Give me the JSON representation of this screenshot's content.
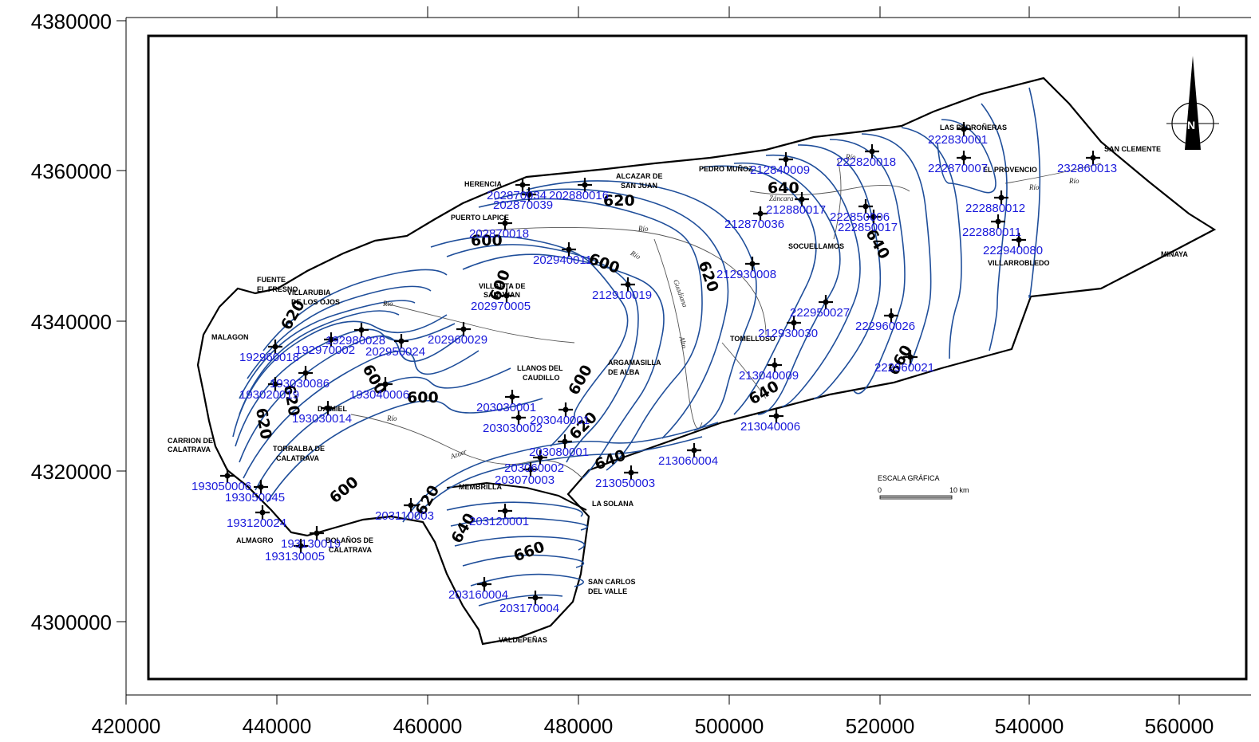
{
  "x_ticks": [
    "420000",
    "440000",
    "460000",
    "480000",
    "500000",
    "520000",
    "540000",
    "560000"
  ],
  "y_ticks": [
    "4380000",
    "4360000",
    "4340000",
    "4320000",
    "4300000"
  ],
  "contour_labels": [
    "620",
    "640",
    "620",
    "600",
    "600",
    "620",
    "600",
    "600",
    "600",
    "620",
    "620",
    "600",
    "620",
    "640",
    "640",
    "620",
    "640",
    "660",
    "640",
    "600",
    "660"
  ],
  "towns": [
    "LAS PEDROÑERAS",
    "SAN CLEMENTE",
    "EL PROVENCIO",
    "PEDRO MUÑOZ",
    "ALCAZAR DE",
    "SAN JUAN",
    "HERENCIA",
    "PUERTO LAPICE",
    "SOCUELLAMOS",
    "VILLARROBLEDO",
    "MINAYA",
    "VILLARTA DE",
    "SAN JUAN",
    "FUENTE",
    "EL FRESNO",
    "VILLARUBIA",
    "DE LOS OJOS",
    "MALAGON",
    "LLANOS DEL",
    "CAUDILLO",
    "ARGAMASILLA",
    "DE ALBA",
    "TOMELLOSO",
    "DAIMIEL",
    "CARRION DE",
    "CALATRAVA",
    "TORRALBA DE",
    "CALATRAVA",
    "ALMAGRO",
    "BOLAÑOS DE",
    "CALATRAVA",
    "MEMBRILLA",
    "LA SOLANA",
    "SAN CARLOS",
    "DEL VALLE",
    "VALDEPEÑAS"
  ],
  "rivers": [
    "Río",
    "Río",
    "Río",
    "Río",
    "Guadiana",
    "Alto",
    "Záncara",
    "Río",
    "Azuer",
    "Río",
    "Río"
  ],
  "scale": {
    "title": "ESCALA GRÁFICA",
    "zero": "0",
    "ten": "10 km"
  },
  "north_label": "N",
  "wells": [
    "222830001",
    "222870007",
    "232860013",
    "222820018",
    "212840009",
    "202870034",
    "202880016",
    "202870039",
    "212880017",
    "212870036",
    "222850006",
    "222850017",
    "222880012",
    "222880011",
    "222940080",
    "202870018",
    "202940011",
    "212930008",
    "212910019",
    "202970005",
    "222950027",
    "222960026",
    "212930030",
    "192980028",
    "192970002",
    "202960029",
    "202950024",
    "192960018",
    "193030086",
    "193020019",
    "193030014",
    "193040006",
    "222960021",
    "213040009",
    "213040006",
    "203030001",
    "203040001",
    "203030002",
    "203080001",
    "203060002",
    "203070003",
    "213060004",
    "213050003",
    "193050006",
    "193050045",
    "193120024",
    "203110003",
    "203120001",
    "193130019",
    "193130005",
    "203160004",
    "203170004"
  ]
}
